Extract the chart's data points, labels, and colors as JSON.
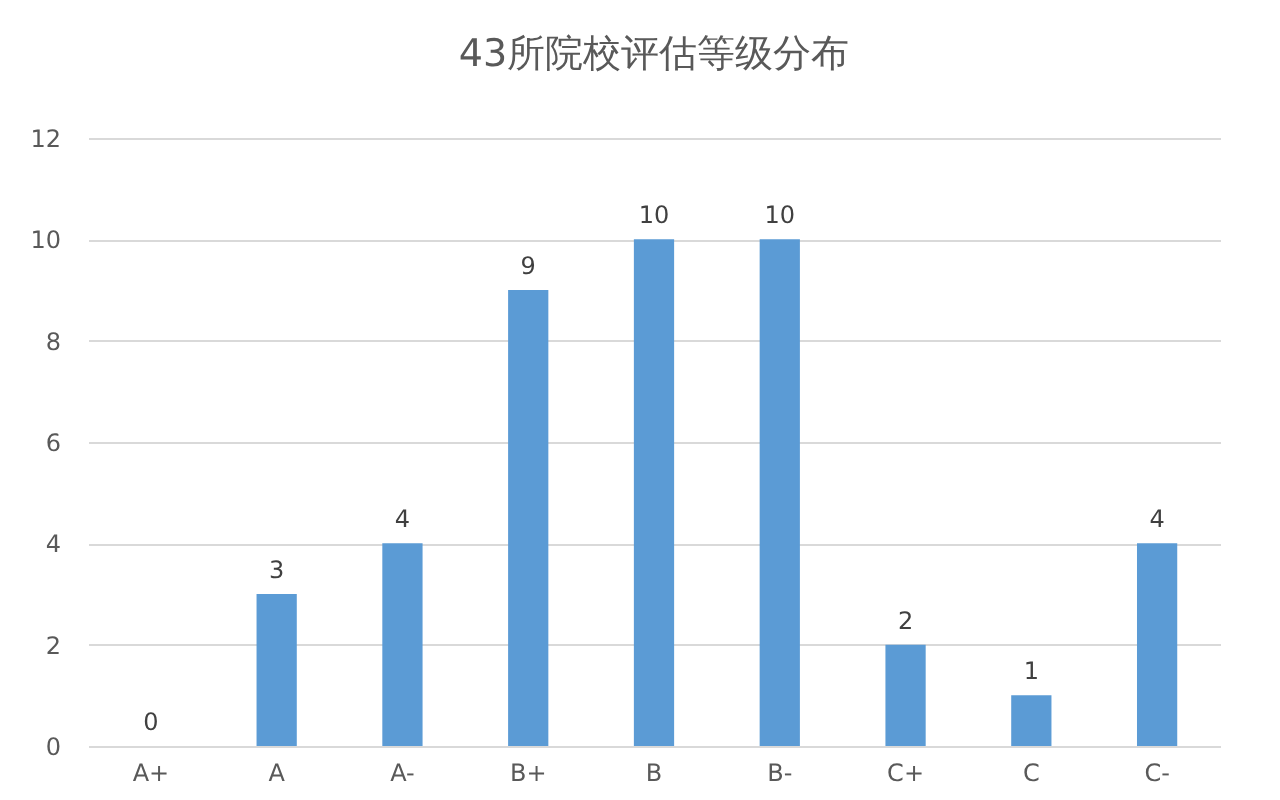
{
  "chart_data": {
    "type": "bar",
    "title": "43所院校评估等级分布",
    "categories": [
      "A+",
      "A",
      "A-",
      "B+",
      "B",
      "B-",
      "C+",
      "C",
      "C-"
    ],
    "values": [
      0,
      3,
      4,
      9,
      10,
      10,
      2,
      1,
      4
    ],
    "color": "#5b9bd5",
    "ylim": [
      0,
      12
    ],
    "yticks": [
      0,
      2,
      4,
      6,
      8,
      10,
      12
    ],
    "grid": "y",
    "data_labels": true
  }
}
